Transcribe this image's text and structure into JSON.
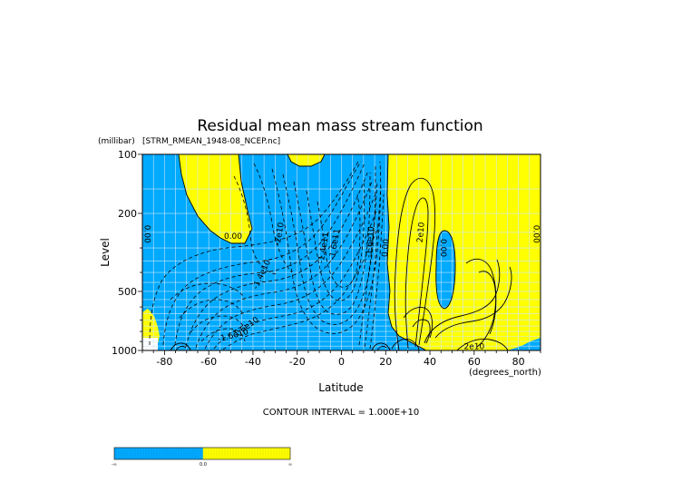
{
  "chart_data": {
    "type": "contour",
    "title": "Residual mean mass stream function",
    "subtitle": "[STRM_RMEAN_1948-08_NCEP.nc]",
    "xlabel": "Latitude",
    "x_units": "(degrees_north)",
    "ylabel": "Level",
    "y_units": "(millibar)",
    "x_range": [
      -90,
      90
    ],
    "y_range": [
      1000,
      100
    ],
    "y_scale": "log",
    "x_ticks": [
      "-80",
      "-60",
      "-40",
      "-20",
      "0",
      "20",
      "40",
      "60",
      "80"
    ],
    "x_tick_values": [
      -80,
      -60,
      -40,
      -20,
      0,
      20,
      40,
      60,
      80
    ],
    "y_ticks": [
      "100",
      "200",
      "500",
      "1000"
    ],
    "y_tick_values": [
      100,
      200,
      500,
      1000
    ],
    "contour_interval_text": "CONTOUR INTERVAL = 1.000E+10",
    "colors": {
      "negative": "#00aaff",
      "positive": "#ffff00",
      "grid": "#cde6ff"
    },
    "colorbar": {
      "labels": [
        "-∞",
        "0.0",
        "∞"
      ]
    },
    "contour_labels": [
      {
        "text": "0.00",
        "lat": -88,
        "p": 255,
        "rotate": 90
      },
      {
        "text": "0.00",
        "lat": -49,
        "p": 262,
        "rotate": 0
      },
      {
        "text": "-2e10",
        "lat": -28,
        "p": 255,
        "rotate": -80
      },
      {
        "text": "-1.4e11",
        "lat": -8,
        "p": 300,
        "rotate": -80
      },
      {
        "text": "-1.6e11",
        "lat": -3,
        "p": 288,
        "rotate": -80
      },
      {
        "text": "-1.4e10",
        "lat": -36,
        "p": 410,
        "rotate": -65
      },
      {
        "text": "1.6e10",
        "lat": -43,
        "p": 760,
        "rotate": -35
      },
      {
        "text": "-1.6e10",
        "lat": -49,
        "p": 840,
        "rotate": -15
      },
      {
        "text": "-1.6e10",
        "lat": 13,
        "p": 280,
        "rotate": -85
      },
      {
        "text": "0.00",
        "lat": 20,
        "p": 300,
        "rotate": -85
      },
      {
        "text": "2e10",
        "lat": 36,
        "p": 250,
        "rotate": -85
      },
      {
        "text": "0.00",
        "lat": 46,
        "p": 300,
        "rotate": 90
      },
      {
        "text": "2e10",
        "lat": 60,
        "p": 960,
        "rotate": 0
      },
      {
        "text": "0.00",
        "lat": 88,
        "p": 255,
        "rotate": 90
      }
    ]
  }
}
